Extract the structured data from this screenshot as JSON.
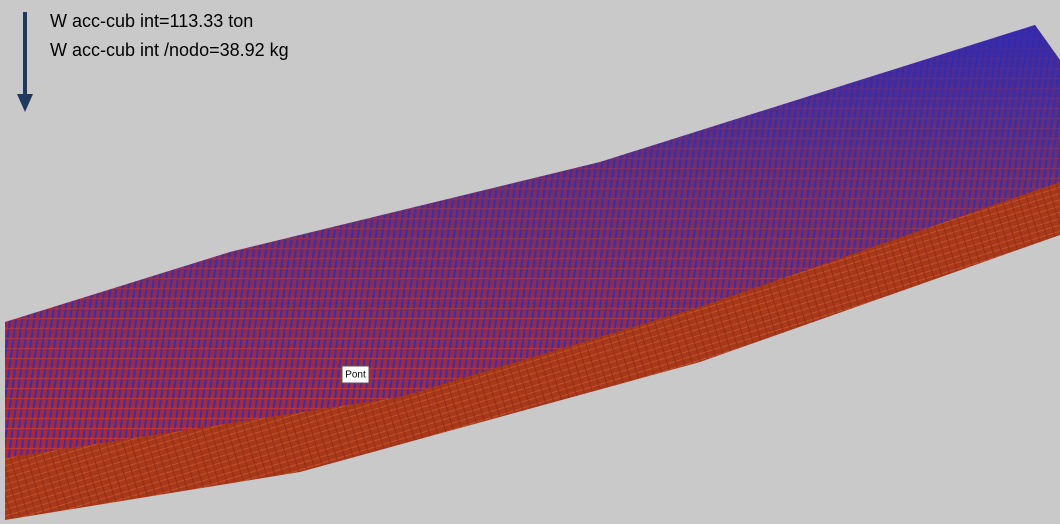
{
  "annotations": {
    "line1": "W acc-cub int=113.33 ton",
    "line2": "W acc-cub int /nodo=38.92 kg"
  },
  "label": "Pont"
}
